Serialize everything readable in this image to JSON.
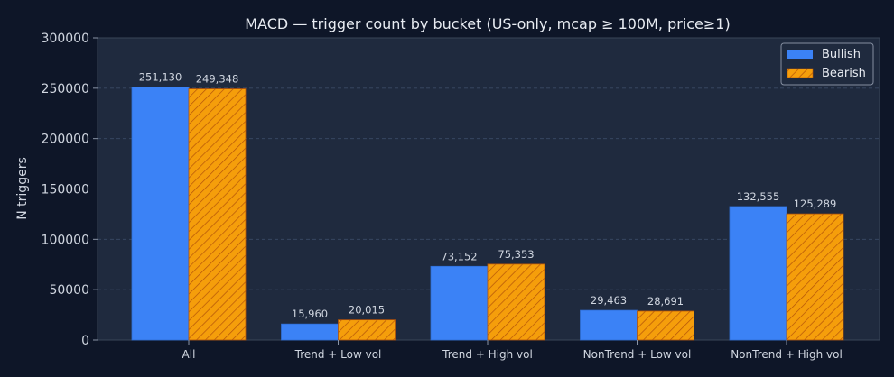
{
  "chart_data": {
    "type": "bar",
    "title": "MACD — trigger count by bucket (US-only, mcap ≥ 100M, price≥1)",
    "xlabel": "",
    "ylabel": "N triggers",
    "categories": [
      "All",
      "Trend + Low vol",
      "Trend + High vol",
      "NonTrend + Low vol",
      "NonTrend + High vol"
    ],
    "series": [
      {
        "name": "Bullish",
        "values": [
          251130,
          15960,
          73152,
          29463,
          132555
        ],
        "labels": [
          "251,130",
          "15,960",
          "73,152",
          "29,463",
          "132,555"
        ],
        "color": "#3b82f6"
      },
      {
        "name": "Bearish",
        "values": [
          249348,
          20015,
          75353,
          28691,
          125289
        ],
        "labels": [
          "249,348",
          "20,015",
          "75,353",
          "28,691",
          "125,289"
        ],
        "color": "#f59e0b",
        "hatch": true
      }
    ],
    "ylim": [
      0,
      300000
    ],
    "yticks": [
      "0",
      "50000",
      "100000",
      "150000",
      "200000",
      "250000",
      "300000"
    ],
    "grid": true,
    "legend": "top-right"
  }
}
